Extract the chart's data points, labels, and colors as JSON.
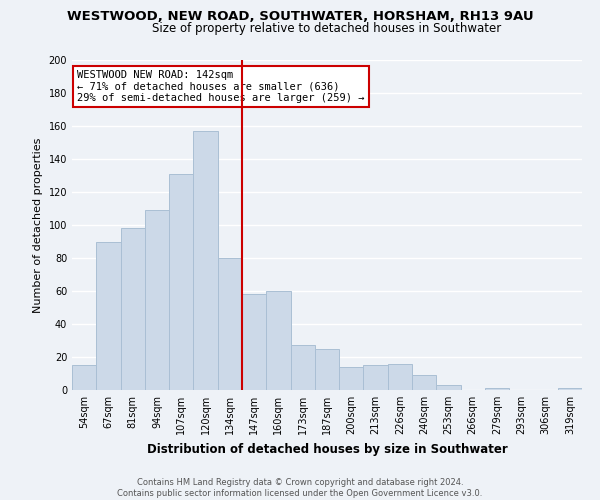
{
  "title": "WESTWOOD, NEW ROAD, SOUTHWATER, HORSHAM, RH13 9AU",
  "subtitle": "Size of property relative to detached houses in Southwater",
  "xlabel": "Distribution of detached houses by size in Southwater",
  "ylabel": "Number of detached properties",
  "bar_labels": [
    "54sqm",
    "67sqm",
    "81sqm",
    "94sqm",
    "107sqm",
    "120sqm",
    "134sqm",
    "147sqm",
    "160sqm",
    "173sqm",
    "187sqm",
    "200sqm",
    "213sqm",
    "226sqm",
    "240sqm",
    "253sqm",
    "266sqm",
    "279sqm",
    "293sqm",
    "306sqm",
    "319sqm"
  ],
  "bar_values": [
    15,
    90,
    98,
    109,
    131,
    157,
    80,
    58,
    60,
    27,
    25,
    14,
    15,
    16,
    9,
    3,
    0,
    1,
    0,
    0,
    1
  ],
  "bar_color": "#ccd9e8",
  "bar_edge_color": "#aabfd4",
  "vline_x": 6.5,
  "vline_color": "#cc0000",
  "annotation_line1": "WESTWOOD NEW ROAD: 142sqm",
  "annotation_line2": "← 71% of detached houses are smaller (636)",
  "annotation_line3": "29% of semi-detached houses are larger (259) →",
  "annotation_box_color": "#ffffff",
  "annotation_box_edge": "#cc0000",
  "ylim": [
    0,
    200
  ],
  "yticks": [
    0,
    20,
    40,
    60,
    80,
    100,
    120,
    140,
    160,
    180,
    200
  ],
  "footer_line1": "Contains HM Land Registry data © Crown copyright and database right 2024.",
  "footer_line2": "Contains public sector information licensed under the Open Government Licence v3.0.",
  "bg_color": "#eef2f7",
  "grid_color": "#ffffff",
  "title_fontsize": 9.5,
  "subtitle_fontsize": 8.5,
  "xlabel_fontsize": 8.5,
  "ylabel_fontsize": 8,
  "tick_fontsize": 7,
  "annotation_fontsize": 7.5,
  "footer_fontsize": 6
}
